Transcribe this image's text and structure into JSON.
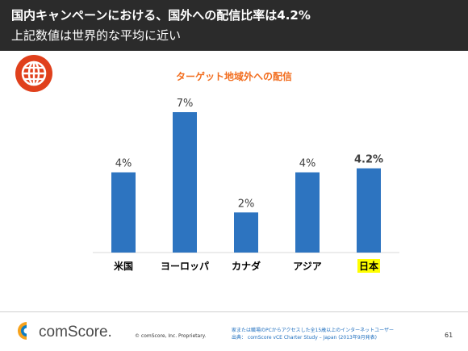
{
  "header": {
    "title": "国内キャンペーンにおける、国外への配信比率は4.2%",
    "subtitle": "上記数値は世界的な平均に近い"
  },
  "chart_data": {
    "type": "bar",
    "title": "ターゲット地域外への配信",
    "categories": [
      "米国",
      "ヨーロッパ",
      "カナダ",
      "アジア",
      "日本"
    ],
    "values": [
      4,
      7,
      2,
      4,
      4.2
    ],
    "value_labels": [
      "4%",
      "7%",
      "2%",
      "4%",
      "4.2%"
    ],
    "highlight_index": 4,
    "highlight_color": "#ffff00",
    "bar_color": "#2d74c0",
    "title_color": "#f26f21",
    "ylim": [
      0,
      7
    ],
    "grid": false,
    "xlabel": "",
    "ylabel": ""
  },
  "logo": {
    "text": "comScore."
  },
  "footer": {
    "copyright": "© comScore, Inc.   Proprietary.",
    "source_line1": "家または職場のPCからアクセスした全15歳以上のインターネットユーザー",
    "source_line2": "出典： comScore vCE Charter Study – Japan (2013年9月発表)",
    "page_number": "61"
  },
  "icons": {
    "globe": "globe-icon"
  },
  "colors": {
    "header_bg": "#2b2b2b",
    "globe": "#e0401c",
    "logo_text": "#4a4a4a"
  }
}
